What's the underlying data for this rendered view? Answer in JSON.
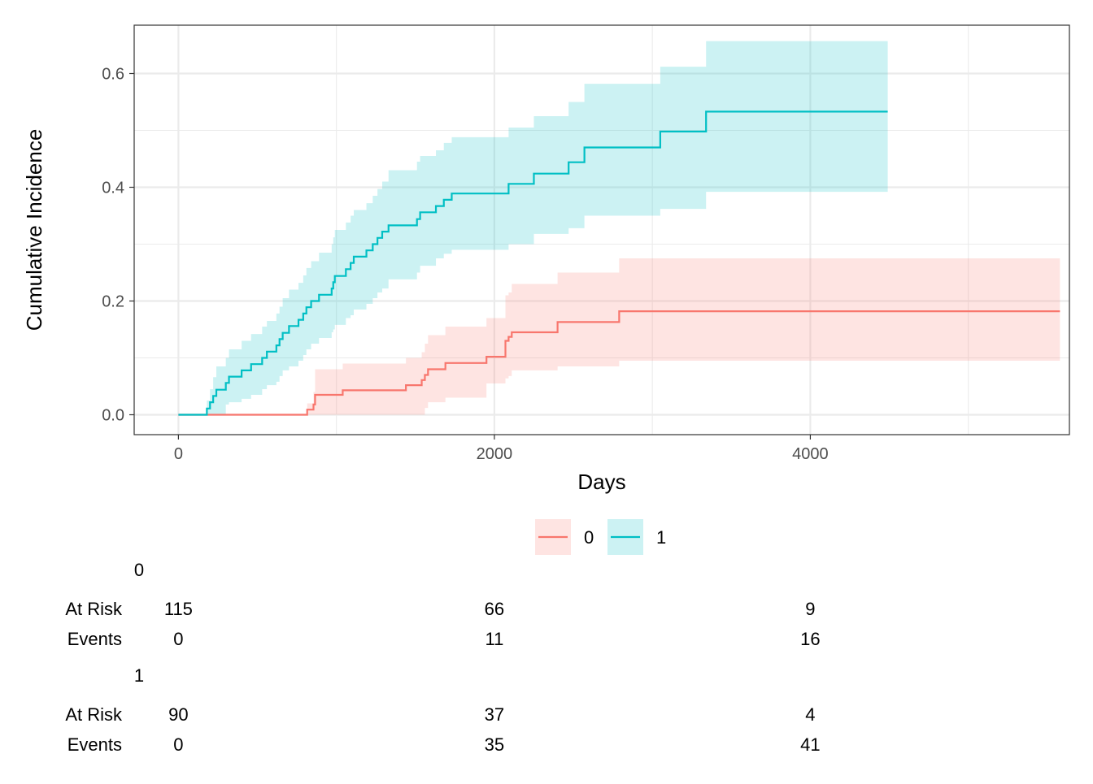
{
  "chart_data": {
    "type": "line",
    "subtype": "step cumulative incidence with confidence bands",
    "xlabel": "Days",
    "ylabel": "Cumulative Incidence",
    "xlim": [
      -280,
      5640
    ],
    "ylim": [
      -0.035,
      0.685
    ],
    "x_ticks": [
      0,
      2000,
      4000
    ],
    "x_tick_labels": [
      "0",
      "2000",
      "4000"
    ],
    "y_ticks": [
      0.0,
      0.2,
      0.4,
      0.6
    ],
    "y_tick_labels": [
      "0.0",
      "0.2",
      "0.4",
      "0.6"
    ],
    "grid": true,
    "legend_position": "bottom",
    "series": [
      {
        "name": "0",
        "color": "#F8766D",
        "fill": "#F8766D",
        "steps": [
          [
            0,
            0.0
          ],
          [
            815,
            0.009
          ],
          [
            855,
            0.018
          ],
          [
            865,
            0.035
          ],
          [
            1040,
            0.043
          ],
          [
            1440,
            0.052
          ],
          [
            1540,
            0.061
          ],
          [
            1560,
            0.07
          ],
          [
            1580,
            0.08
          ],
          [
            1690,
            0.091
          ],
          [
            1950,
            0.102
          ],
          [
            2070,
            0.13
          ],
          [
            2090,
            0.137
          ],
          [
            2110,
            0.145
          ],
          [
            2400,
            0.163
          ],
          [
            2790,
            0.182
          ],
          [
            5580,
            0.182
          ]
        ],
        "lower": [
          [
            0,
            0.0
          ],
          [
            815,
            0.0
          ],
          [
            855,
            0.0
          ],
          [
            865,
            0.0
          ],
          [
            1040,
            0.0
          ],
          [
            1440,
            0.0
          ],
          [
            1540,
            0.0
          ],
          [
            1560,
            0.012
          ],
          [
            1580,
            0.022
          ],
          [
            1690,
            0.03
          ],
          [
            1950,
            0.055
          ],
          [
            2070,
            0.064
          ],
          [
            2090,
            0.068
          ],
          [
            2110,
            0.078
          ],
          [
            2400,
            0.085
          ],
          [
            2790,
            0.095
          ],
          [
            5580,
            0.105
          ]
        ],
        "upper": [
          [
            0,
            0.0
          ],
          [
            815,
            0.02
          ],
          [
            855,
            0.04
          ],
          [
            865,
            0.08
          ],
          [
            1040,
            0.09
          ],
          [
            1440,
            0.1
          ],
          [
            1540,
            0.11
          ],
          [
            1560,
            0.125
          ],
          [
            1580,
            0.14
          ],
          [
            1690,
            0.155
          ],
          [
            1950,
            0.17
          ],
          [
            2070,
            0.21
          ],
          [
            2090,
            0.215
          ],
          [
            2110,
            0.23
          ],
          [
            2400,
            0.25
          ],
          [
            2790,
            0.275
          ],
          [
            5580,
            0.275
          ]
        ]
      },
      {
        "name": "1",
        "color": "#00BFC4",
        "fill": "#00BFC4",
        "steps": [
          [
            0,
            0.0
          ],
          [
            180,
            0.011
          ],
          [
            200,
            0.022
          ],
          [
            220,
            0.033
          ],
          [
            240,
            0.044
          ],
          [
            300,
            0.056
          ],
          [
            320,
            0.067
          ],
          [
            400,
            0.078
          ],
          [
            460,
            0.089
          ],
          [
            530,
            0.1
          ],
          [
            560,
            0.111
          ],
          [
            620,
            0.122
          ],
          [
            640,
            0.133
          ],
          [
            660,
            0.144
          ],
          [
            700,
            0.156
          ],
          [
            760,
            0.167
          ],
          [
            790,
            0.178
          ],
          [
            810,
            0.189
          ],
          [
            840,
            0.2
          ],
          [
            890,
            0.211
          ],
          [
            970,
            0.222
          ],
          [
            980,
            0.233
          ],
          [
            990,
            0.244
          ],
          [
            1060,
            0.256
          ],
          [
            1090,
            0.267
          ],
          [
            1110,
            0.278
          ],
          [
            1190,
            0.289
          ],
          [
            1230,
            0.3
          ],
          [
            1260,
            0.311
          ],
          [
            1290,
            0.322
          ],
          [
            1330,
            0.333
          ],
          [
            1510,
            0.344
          ],
          [
            1530,
            0.356
          ],
          [
            1630,
            0.367
          ],
          [
            1680,
            0.378
          ],
          [
            1730,
            0.389
          ],
          [
            2090,
            0.406
          ],
          [
            2250,
            0.424
          ],
          [
            2470,
            0.444
          ],
          [
            2570,
            0.47
          ],
          [
            3050,
            0.498
          ],
          [
            3340,
            0.533
          ],
          [
            4490,
            0.533
          ]
        ],
        "lower": [
          [
            0,
            0.0
          ],
          [
            180,
            0.0
          ],
          [
            200,
            0.0
          ],
          [
            220,
            0.0
          ],
          [
            240,
            0.0
          ],
          [
            300,
            0.018
          ],
          [
            320,
            0.022
          ],
          [
            400,
            0.028
          ],
          [
            460,
            0.035
          ],
          [
            530,
            0.045
          ],
          [
            560,
            0.052
          ],
          [
            620,
            0.058
          ],
          [
            640,
            0.068
          ],
          [
            660,
            0.078
          ],
          [
            700,
            0.085
          ],
          [
            760,
            0.095
          ],
          [
            790,
            0.105
          ],
          [
            810,
            0.115
          ],
          [
            840,
            0.125
          ],
          [
            890,
            0.135
          ],
          [
            970,
            0.145
          ],
          [
            980,
            0.15
          ],
          [
            990,
            0.158
          ],
          [
            1060,
            0.17
          ],
          [
            1090,
            0.175
          ],
          [
            1110,
            0.185
          ],
          [
            1190,
            0.195
          ],
          [
            1230,
            0.205
          ],
          [
            1260,
            0.215
          ],
          [
            1290,
            0.222
          ],
          [
            1330,
            0.238
          ],
          [
            1510,
            0.25
          ],
          [
            1530,
            0.262
          ],
          [
            1630,
            0.275
          ],
          [
            1680,
            0.283
          ],
          [
            1730,
            0.29
          ],
          [
            2090,
            0.3
          ],
          [
            2250,
            0.318
          ],
          [
            2470,
            0.328
          ],
          [
            2570,
            0.35
          ],
          [
            3050,
            0.362
          ],
          [
            3340,
            0.392
          ],
          [
            4490,
            0.392
          ]
        ],
        "upper": [
          [
            0,
            0.0
          ],
          [
            180,
            0.025
          ],
          [
            200,
            0.045
          ],
          [
            220,
            0.066
          ],
          [
            240,
            0.085
          ],
          [
            300,
            0.1
          ],
          [
            320,
            0.115
          ],
          [
            400,
            0.13
          ],
          [
            460,
            0.142
          ],
          [
            530,
            0.155
          ],
          [
            560,
            0.165
          ],
          [
            620,
            0.178
          ],
          [
            640,
            0.19
          ],
          [
            660,
            0.205
          ],
          [
            700,
            0.22
          ],
          [
            760,
            0.232
          ],
          [
            790,
            0.245
          ],
          [
            810,
            0.258
          ],
          [
            840,
            0.27
          ],
          [
            890,
            0.285
          ],
          [
            970,
            0.3
          ],
          [
            980,
            0.312
          ],
          [
            990,
            0.325
          ],
          [
            1060,
            0.338
          ],
          [
            1090,
            0.35
          ],
          [
            1110,
            0.36
          ],
          [
            1190,
            0.372
          ],
          [
            1230,
            0.385
          ],
          [
            1260,
            0.397
          ],
          [
            1290,
            0.41
          ],
          [
            1330,
            0.43
          ],
          [
            1510,
            0.445
          ],
          [
            1530,
            0.455
          ],
          [
            1630,
            0.465
          ],
          [
            1680,
            0.478
          ],
          [
            1730,
            0.488
          ],
          [
            2090,
            0.505
          ],
          [
            2250,
            0.525
          ],
          [
            2470,
            0.55
          ],
          [
            2570,
            0.582
          ],
          [
            3050,
            0.612
          ],
          [
            3340,
            0.657
          ],
          [
            4490,
            0.657
          ]
        ]
      }
    ]
  },
  "legend": {
    "items": [
      {
        "label": "0",
        "color": "#F8766D"
      },
      {
        "label": "1",
        "color": "#00BFC4"
      }
    ]
  },
  "risk_table": {
    "row_labels": {
      "at_risk": "At Risk",
      "events": "Events"
    },
    "times": [
      0,
      2000,
      4000
    ],
    "groups": [
      {
        "name": "0",
        "at_risk": [
          "115",
          "66",
          "9"
        ],
        "events": [
          "0",
          "11",
          "16"
        ]
      },
      {
        "name": "1",
        "at_risk": [
          "90",
          "37",
          "4"
        ],
        "events": [
          "0",
          "35",
          "41"
        ]
      }
    ]
  }
}
